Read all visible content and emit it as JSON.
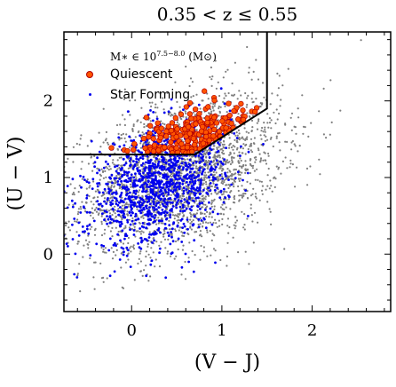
{
  "chart_data": {
    "type": "scatter",
    "title": "0.35 < z ≤ 0.55",
    "xlabel": "(V − J)",
    "ylabel": "(U − V)",
    "xlim": [
      -0.75,
      2.87
    ],
    "ylim": [
      -0.75,
      2.9
    ],
    "xticks": [
      0,
      1,
      2
    ],
    "yticks": [
      0,
      1,
      2
    ],
    "xtick_labels": [
      "0",
      "1",
      "2"
    ],
    "ytick_labels": [
      "0",
      "1",
      "2"
    ],
    "grid": false,
    "legend": {
      "placement": "top-left",
      "title": "M∗ ∈ 10^7.5−8.0 (M⊙)",
      "title_base": "M∗ ∈ 10",
      "title_exp": "7.5−8.0",
      "title_unit": " (M⊙)",
      "entries": [
        "Quiescent",
        "Star Forming"
      ]
    },
    "selection_boundary": {
      "x": [
        -0.75,
        0.7,
        1.5,
        1.5
      ],
      "y": [
        1.3,
        1.3,
        1.9,
        2.9
      ]
    },
    "series": [
      {
        "name": "",
        "color": "#808080",
        "center": [
          0.55,
          1.05
        ],
        "spread": [
          0.55,
          0.48
        ],
        "count": 2600
      },
      {
        "name": "Star Forming",
        "color": "#0000ee",
        "center": [
          0.3,
          0.9
        ],
        "spread": [
          0.38,
          0.36
        ],
        "count": 1200
      },
      {
        "name": "Quiescent",
        "color": "#ff5500",
        "edge_color": "#b30000",
        "center": [
          0.65,
          1.55
        ],
        "spread": [
          0.28,
          0.16
        ],
        "count": 230
      }
    ]
  }
}
